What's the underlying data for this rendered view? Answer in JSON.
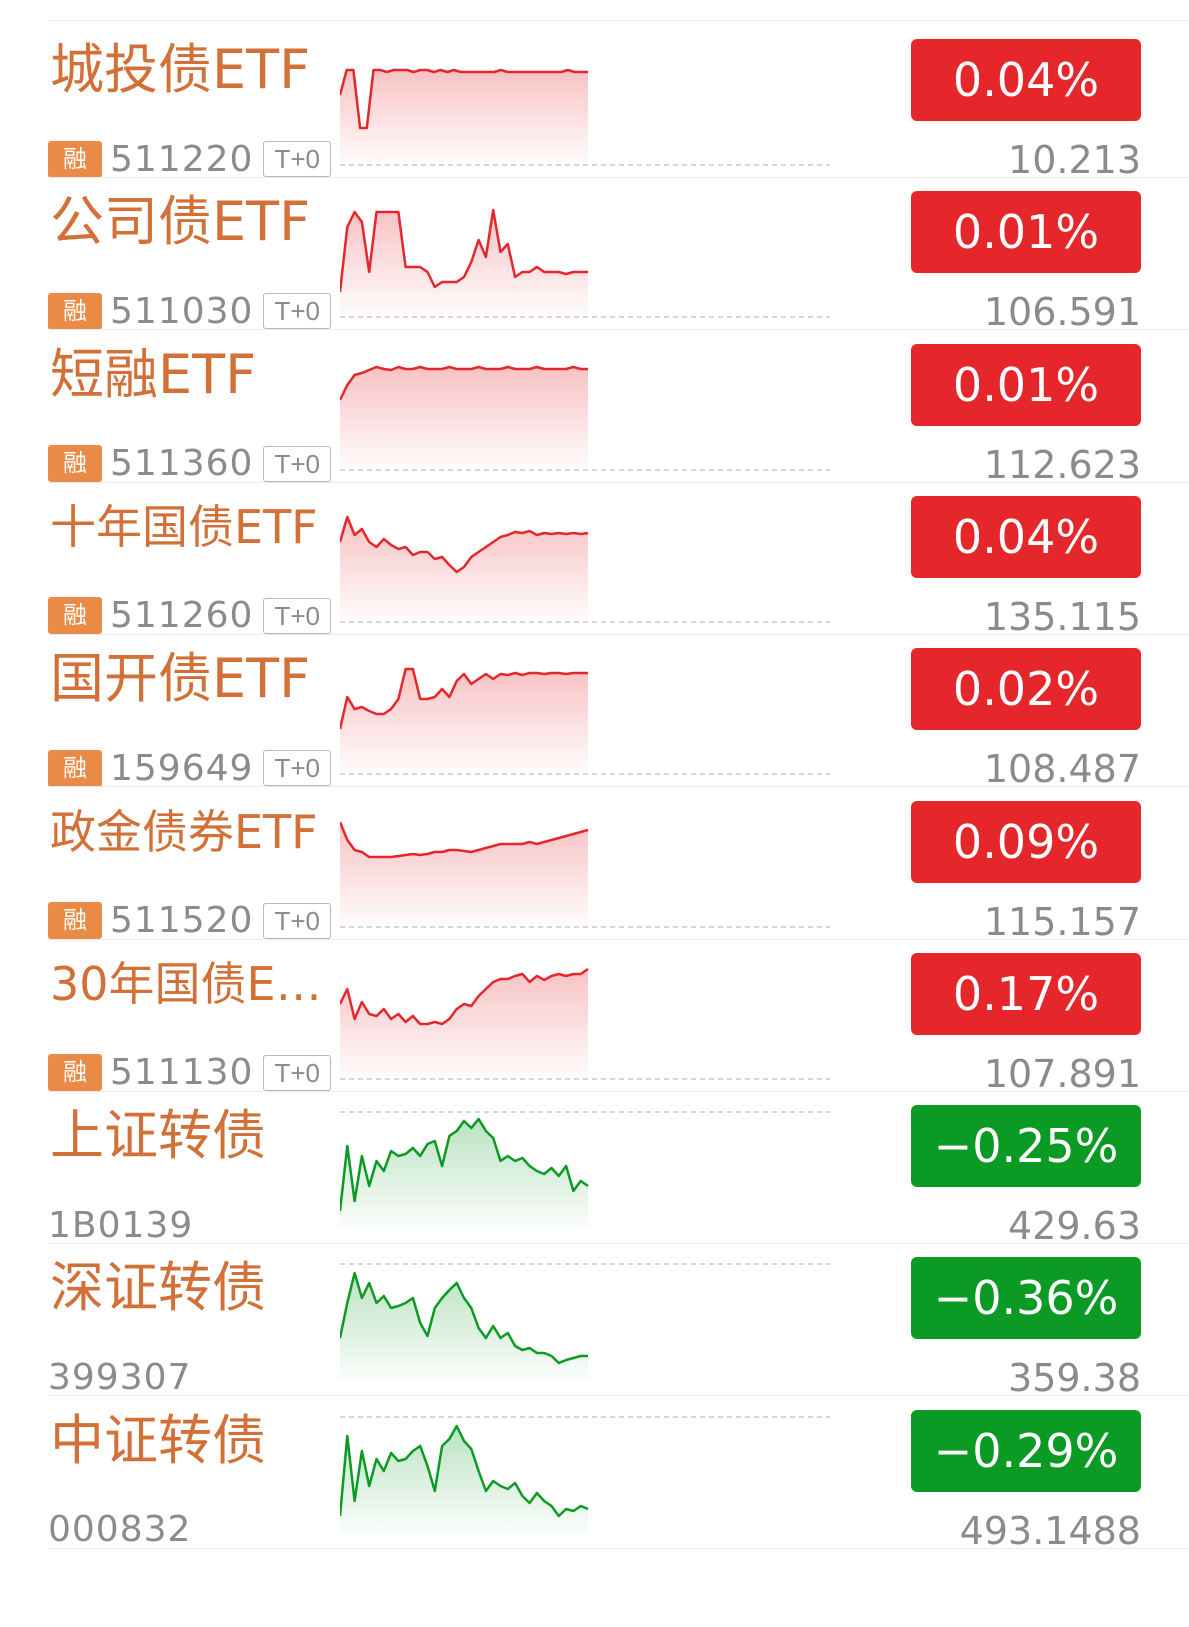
{
  "colors": {
    "up": "#e5262a",
    "down": "#0b9a23",
    "name": "#d27038",
    "rong_badge": "#ea8a47",
    "muted": "#8b8b8b"
  },
  "rows": [
    {
      "name": "城投债ETF",
      "rong": "融",
      "code": "511220",
      "tag": "T+0",
      "change": "0.04%",
      "price": "10.213",
      "trend": "up",
      "spark": [
        0.55,
        0.8,
        0.8,
        0.22,
        0.22,
        0.8,
        0.8,
        0.78,
        0.8,
        0.8,
        0.8,
        0.78,
        0.8,
        0.8,
        0.78,
        0.8,
        0.78,
        0.8,
        0.78,
        0.78,
        0.78,
        0.78,
        0.78,
        0.78,
        0.8,
        0.78,
        0.78,
        0.78,
        0.78,
        0.78,
        0.78,
        0.78,
        0.78,
        0.78,
        0.8,
        0.78,
        0.78,
        0.78
      ]
    },
    {
      "name": "公司债ETF",
      "rong": "融",
      "code": "511030",
      "tag": "T+0",
      "change": "0.01%",
      "price": "106.591",
      "trend": "up",
      "spark": [
        0.1,
        0.75,
        0.9,
        0.8,
        0.3,
        0.9,
        0.9,
        0.9,
        0.9,
        0.35,
        0.35,
        0.35,
        0.3,
        0.15,
        0.2,
        0.2,
        0.2,
        0.25,
        0.4,
        0.62,
        0.45,
        0.92,
        0.5,
        0.58,
        0.25,
        0.3,
        0.3,
        0.35,
        0.3,
        0.3,
        0.3,
        0.28,
        0.3,
        0.3,
        0.3
      ]
    },
    {
      "name": "短融ETF",
      "rong": "融",
      "code": "511360",
      "tag": "T+0",
      "change": "0.01%",
      "price": "112.623",
      "trend": "up",
      "spark": [
        0.55,
        0.7,
        0.8,
        0.82,
        0.85,
        0.88,
        0.86,
        0.85,
        0.88,
        0.86,
        0.86,
        0.88,
        0.86,
        0.86,
        0.86,
        0.88,
        0.86,
        0.86,
        0.86,
        0.88,
        0.86,
        0.86,
        0.86,
        0.88,
        0.86,
        0.86,
        0.86,
        0.88,
        0.86,
        0.86,
        0.86,
        0.86,
        0.88,
        0.86,
        0.86
      ]
    },
    {
      "name": "十年国债ETF",
      "rong": "融",
      "code": "511260",
      "tag": "T+0",
      "change": "0.04%",
      "price": "135.115",
      "trend": "up",
      "spark": [
        0.65,
        0.9,
        0.72,
        0.78,
        0.65,
        0.6,
        0.68,
        0.62,
        0.58,
        0.6,
        0.52,
        0.55,
        0.55,
        0.48,
        0.5,
        0.42,
        0.35,
        0.4,
        0.5,
        0.55,
        0.6,
        0.65,
        0.7,
        0.72,
        0.75,
        0.74,
        0.76,
        0.72,
        0.74,
        0.73,
        0.74,
        0.73,
        0.74,
        0.73,
        0.74
      ]
    },
    {
      "name": "国开债ETF",
      "rong": "融",
      "code": "",
      "code2": "159649",
      "tag": "T+0",
      "change": "0.02%",
      "price": "108.487",
      "trend": "up",
      "spark": [
        0.3,
        0.62,
        0.5,
        0.52,
        0.48,
        0.45,
        0.45,
        0.5,
        0.6,
        0.9,
        0.9,
        0.6,
        0.6,
        0.62,
        0.7,
        0.62,
        0.78,
        0.85,
        0.75,
        0.8,
        0.85,
        0.8,
        0.85,
        0.84,
        0.86,
        0.84,
        0.86,
        0.86,
        0.85,
        0.86,
        0.86,
        0.85,
        0.86,
        0.86,
        0.86
      ]
    },
    {
      "name": "政金债券ETF",
      "rong": "融",
      "code": "511520",
      "tag": "T+0",
      "change": "0.09%",
      "price": "115.157",
      "trend": "up",
      "spark": [
        0.9,
        0.72,
        0.62,
        0.6,
        0.55,
        0.55,
        0.55,
        0.55,
        0.56,
        0.57,
        0.58,
        0.57,
        0.58,
        0.6,
        0.6,
        0.62,
        0.62,
        0.61,
        0.6,
        0.62,
        0.64,
        0.66,
        0.68,
        0.68,
        0.68,
        0.68,
        0.7,
        0.68,
        0.7,
        0.72,
        0.74,
        0.76,
        0.78,
        0.8,
        0.82
      ]
    },
    {
      "name": "30年国债ET...",
      "rong": "融",
      "code": "511130",
      "tag": "T+0",
      "change": "0.17%",
      "price": "107.891",
      "trend": "up",
      "spark": [
        0.6,
        0.75,
        0.45,
        0.62,
        0.5,
        0.48,
        0.55,
        0.45,
        0.5,
        0.42,
        0.48,
        0.4,
        0.4,
        0.42,
        0.4,
        0.45,
        0.55,
        0.6,
        0.58,
        0.68,
        0.75,
        0.82,
        0.85,
        0.85,
        0.88,
        0.9,
        0.82,
        0.88,
        0.84,
        0.88,
        0.9,
        0.88,
        0.9,
        0.9,
        0.95
      ]
    },
    {
      "name": "上证转债",
      "rong": "",
      "code": "",
      "code2": "1B0139",
      "tag": "",
      "change": "−0.25%",
      "price": "429.63",
      "trend": "down",
      "spark": [
        0.05,
        0.7,
        0.15,
        0.6,
        0.3,
        0.55,
        0.45,
        0.65,
        0.6,
        0.62,
        0.68,
        0.6,
        0.72,
        0.75,
        0.5,
        0.8,
        0.85,
        0.95,
        0.88,
        0.97,
        0.85,
        0.78,
        0.55,
        0.6,
        0.55,
        0.58,
        0.5,
        0.45,
        0.42,
        0.48,
        0.4,
        0.5,
        0.25,
        0.35,
        0.3
      ]
    },
    {
      "name": "深证转债",
      "rong": "",
      "code": "",
      "code2": "399307",
      "tag": "",
      "change": "−0.36%",
      "price": "359.38",
      "trend": "down",
      "spark": [
        0.3,
        0.65,
        0.95,
        0.7,
        0.85,
        0.65,
        0.72,
        0.6,
        0.62,
        0.65,
        0.7,
        0.45,
        0.32,
        0.6,
        0.7,
        0.78,
        0.85,
        0.7,
        0.6,
        0.4,
        0.3,
        0.42,
        0.3,
        0.35,
        0.22,
        0.18,
        0.2,
        0.15,
        0.15,
        0.12,
        0.05,
        0.08,
        0.1,
        0.12,
        0.12
      ]
    },
    {
      "name": "中证转债",
      "rong": "",
      "code": "",
      "code2": "000832",
      "tag": "",
      "change": "−0.29%",
      "price": "493.1488",
      "trend": "down",
      "spark": [
        0.05,
        0.85,
        0.2,
        0.7,
        0.35,
        0.62,
        0.5,
        0.68,
        0.6,
        0.62,
        0.7,
        0.75,
        0.55,
        0.3,
        0.75,
        0.82,
        0.95,
        0.8,
        0.72,
        0.5,
        0.3,
        0.4,
        0.35,
        0.32,
        0.38,
        0.25,
        0.18,
        0.28,
        0.2,
        0.15,
        0.05,
        0.12,
        0.1,
        0.15,
        0.12
      ]
    }
  ]
}
